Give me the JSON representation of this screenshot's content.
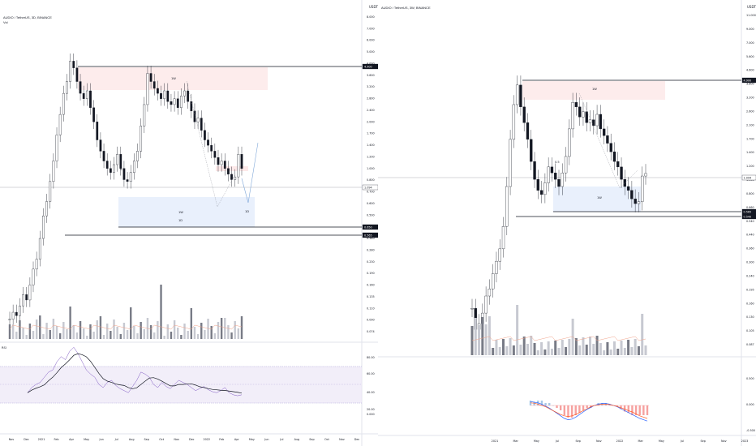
{
  "chart_data": [
    {
      "type": "candlestick",
      "symbol_line": "AUDIO / TetherUS, 3D, BINANCE",
      "sub_label": "Vol",
      "y_axis_label": "USDT",
      "y_ticks": [
        "8.000",
        "7.000",
        "6.000",
        "5.000",
        "4.000",
        "3.600",
        "3.200",
        "2.800",
        "2.400",
        "2.000",
        "1.700",
        "1.400",
        "1.200",
        "1.000",
        "0.800",
        "0.700",
        "0.600",
        "0.500",
        "0.400",
        "0.340",
        "0.280",
        "0.230",
        "0.190",
        "0.160",
        "0.135",
        "0.110",
        "0.090",
        "0.074"
      ],
      "x_ticks": [
        "Nov",
        "Dec",
        "2021",
        "Feb",
        "Apr",
        "May",
        "Jun",
        "Jul",
        "Aug",
        "Sep",
        "Oct",
        "Nov",
        "Dec",
        "2022",
        "Feb",
        "Apr",
        "May",
        "Jun",
        "Jul",
        "Aug",
        "Sep",
        "Oct",
        "Nov",
        "Dec"
      ],
      "price_tags": [
        {
          "text": "4.900",
          "dark": true
        },
        {
          "text": "1.094",
          "dark": false
        },
        {
          "text": "0.650",
          "dark": true
        },
        {
          "text": "0.565",
          "dark": true
        }
      ],
      "annotations": [
        "1W",
        "1W",
        "1D",
        "0.5",
        "1D"
      ],
      "indicator": {
        "name": "RSI",
        "ticks": [
          "80.00",
          "60.00",
          "40.00",
          "20.00",
          "0.000"
        ]
      },
      "closes": [
        0.09,
        0.1,
        0.095,
        0.11,
        0.13,
        0.12,
        0.15,
        0.19,
        0.22,
        0.3,
        0.42,
        0.52,
        0.7,
        0.95,
        1.4,
        1.9,
        2.6,
        3.1,
        4.2,
        3.8,
        3.1,
        2.6,
        2.4,
        2.7,
        2.1,
        1.7,
        1.3,
        1.1,
        0.95,
        0.85,
        0.8,
        0.9,
        1.05,
        0.85,
        0.72,
        0.7,
        0.8,
        0.95,
        1.1,
        1.6,
        2.2,
        3.5,
        3.1,
        2.8,
        2.6,
        2.4,
        2.7,
        2.3,
        2.2,
        2.4,
        2.1,
        2.5,
        2.7,
        2.3,
        2.0,
        1.7,
        1.8,
        1.5,
        1.3,
        1.2,
        1.1,
        1.0,
        0.9,
        0.95,
        0.85,
        0.78,
        0.72,
        0.75,
        1.05,
        0.85
      ]
    },
    {
      "type": "candlestick",
      "symbol_line": "AUDIO / TetherUS, 3W, BINANCE",
      "y_axis_label": "USDT",
      "y_ticks": [
        "11.000",
        "9.000",
        "7.000",
        "5.600",
        "4.600",
        "3.800",
        "3.200",
        "2.600",
        "2.100",
        "1.700",
        "1.400",
        "1.200",
        "1.000",
        "0.800",
        "0.660",
        "0.540",
        "0.440",
        "0.360",
        "0.300",
        "0.240",
        "0.195",
        "0.160",
        "0.130",
        "0.105",
        "0.087"
      ],
      "x_ticks": [
        "2021",
        "Mar",
        "May",
        "Jul",
        "Sep",
        "Nov",
        "2022",
        "Mar",
        "May",
        "Jul",
        "Sep",
        "Nov",
        "2023"
      ],
      "price_tags": [
        {
          "text": "4.900",
          "dark": true
        },
        {
          "text": "1.094",
          "dark": false
        },
        {
          "text": "0.565",
          "dark": true
        },
        {
          "text": "0.540",
          "dark": true
        }
      ],
      "annotations": [
        "1W",
        "1W",
        "0.5"
      ],
      "indicator": {
        "name": "MACD",
        "ticks": [
          "0.500",
          "0.000",
          "-0.500"
        ]
      },
      "closes": [
        0.15,
        0.11,
        0.12,
        0.14,
        0.18,
        0.2,
        0.25,
        0.3,
        0.36,
        0.5,
        0.9,
        1.8,
        3.0,
        4.0,
        2.9,
        2.3,
        1.8,
        1.3,
        1.0,
        0.85,
        0.8,
        0.95,
        1.2,
        1.1,
        1.0,
        0.9,
        1.1,
        1.4,
        2.1,
        3.1,
        2.9,
        2.5,
        2.7,
        2.3,
        2.4,
        2.2,
        2.6,
        2.1,
        1.9,
        1.7,
        1.5,
        1.3,
        1.2,
        1.0,
        0.9,
        0.85,
        0.75,
        0.7,
        0.72,
        1.05,
        1.09
      ],
      "macd": [
        0.06,
        0.05,
        0.04,
        0.02,
        -0.01,
        -0.04,
        -0.08,
        -0.12,
        -0.16,
        -0.2,
        -0.22,
        -0.21,
        -0.18,
        -0.14,
        -0.1,
        -0.06,
        -0.03,
        0.0,
        0.02,
        0.03,
        0.03,
        0.02,
        0.0,
        -0.02,
        -0.05,
        -0.08,
        -0.11,
        -0.14,
        -0.17,
        -0.2,
        -0.22,
        -0.24
      ],
      "signal": [
        0.04,
        0.035,
        0.02,
        0.0,
        -0.02,
        -0.05,
        -0.08,
        -0.11,
        -0.14,
        -0.16,
        -0.17,
        -0.16,
        -0.14,
        -0.11,
        -0.08,
        -0.05,
        -0.02,
        0.0,
        0.01,
        0.02,
        0.02,
        0.015,
        0.0,
        -0.015,
        -0.035,
        -0.055,
        -0.08,
        -0.1,
        -0.13,
        -0.16,
        -0.18,
        -0.2
      ]
    }
  ]
}
